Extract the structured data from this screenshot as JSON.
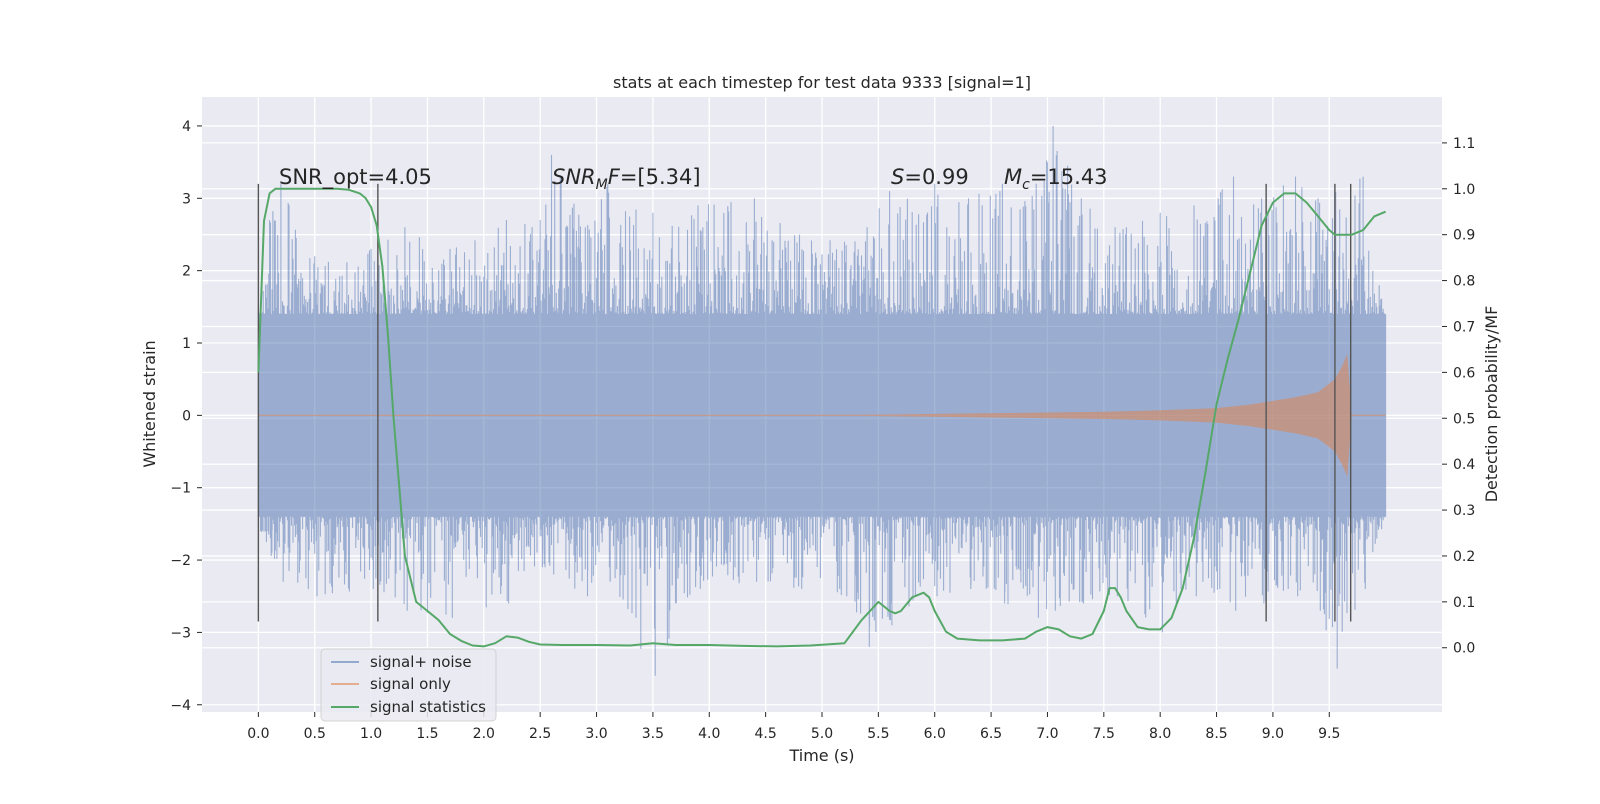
{
  "chart_data": {
    "type": "line",
    "title": "stats at each timestep for test data 9333 [signal=1]",
    "xlabel": "Time (s)",
    "ylabel": "Whitened strain",
    "y2label": "Detection probability/MF",
    "xlim": [
      -0.5,
      10.5
    ],
    "ylim": [
      -4.1,
      4.4
    ],
    "y2lim": [
      -0.14,
      1.2
    ],
    "x_ticks": [
      0.0,
      0.5,
      1.0,
      1.5,
      2.0,
      2.5,
      3.0,
      3.5,
      4.0,
      4.5,
      5.0,
      5.5,
      6.0,
      6.5,
      7.0,
      7.5,
      8.0,
      8.5,
      9.0,
      9.5
    ],
    "x_tick_labels": [
      "0.0",
      "0.5",
      "1.0",
      "1.5",
      "2.0",
      "2.5",
      "3.0",
      "3.5",
      "4.0",
      "4.5",
      "5.0",
      "5.5",
      "6.0",
      "6.5",
      "7.0",
      "7.5",
      "8.0",
      "8.5",
      "9.0",
      "9.5"
    ],
    "y_ticks": [
      4,
      3,
      2,
      1,
      0,
      -1,
      -2,
      -3,
      -4
    ],
    "y_tick_labels": [
      "4",
      "3",
      "2",
      "1",
      "0",
      "−1",
      "−2",
      "−3",
      "−4"
    ],
    "y2_ticks": [
      1.1,
      1.0,
      0.9,
      0.8,
      0.7,
      0.6,
      0.5,
      0.4,
      0.3,
      0.2,
      0.1,
      0.0
    ],
    "y2_tick_labels": [
      "1.1",
      "1.0",
      "0.9",
      "0.8",
      "0.7",
      "0.6",
      "0.5",
      "0.4",
      "0.3",
      "0.2",
      "0.1",
      "0.0"
    ],
    "grid": true,
    "legend": "lower-left",
    "colors": {
      "background": "#eaeaf2",
      "grid": "#ffffff",
      "noise": "#4c72b0",
      "signal": "#dd8452",
      "stats": "#55a868",
      "vlines": "#555555"
    },
    "series": [
      {
        "name": "signal+ noise",
        "axis": "left",
        "style": "dense noise band",
        "core_range": [
          -1.4,
          1.4
        ],
        "envelope_peaks": [
          [
            0.0,
            1.5,
            -1.6
          ],
          [
            0.1,
            2.7,
            -1.9
          ],
          [
            0.2,
            3.2,
            -2.3
          ],
          [
            0.5,
            2.2,
            -2.5
          ],
          [
            1.0,
            2.3,
            -2.4
          ],
          [
            1.3,
            2.6,
            -2.7
          ],
          [
            1.7,
            2.3,
            -2.8
          ],
          [
            2.2,
            2.7,
            -2.6
          ],
          [
            2.5,
            2.7,
            -2.1
          ],
          [
            2.6,
            3.6,
            -2.2
          ],
          [
            2.9,
            2.6,
            -2.5
          ],
          [
            3.1,
            3.2,
            -2.3
          ],
          [
            3.5,
            2.8,
            -3.6
          ],
          [
            3.9,
            2.9,
            -2.4
          ],
          [
            4.4,
            3.0,
            -2.3
          ],
          [
            4.8,
            2.5,
            -2.4
          ],
          [
            5.2,
            2.4,
            -2.5
          ],
          [
            5.4,
            2.6,
            -3.2
          ],
          [
            5.6,
            3.1,
            -2.9
          ],
          [
            6.0,
            3.2,
            -2.5
          ],
          [
            6.3,
            3.0,
            -2.4
          ],
          [
            6.6,
            3.2,
            -2.6
          ],
          [
            6.9,
            3.2,
            -2.8
          ],
          [
            7.05,
            4.0,
            -2.7
          ],
          [
            7.3,
            3.0,
            -2.6
          ],
          [
            7.6,
            2.6,
            -2.5
          ],
          [
            8.0,
            2.8,
            -3.0
          ],
          [
            8.3,
            2.9,
            -2.5
          ],
          [
            8.65,
            3.3,
            -2.7
          ],
          [
            8.9,
            3.0,
            -2.6
          ],
          [
            9.2,
            3.3,
            -2.5
          ],
          [
            9.4,
            3.0,
            -2.7
          ],
          [
            9.55,
            3.2,
            -3.5
          ],
          [
            9.8,
            3.3,
            -2.4
          ],
          [
            10.0,
            1.3,
            -1.4
          ]
        ]
      },
      {
        "name": "signal only",
        "axis": "left",
        "style": "chirp",
        "envelope_x": [
          0.0,
          5.0,
          6.0,
          7.0,
          7.5,
          8.0,
          8.5,
          8.8,
          9.0,
          9.2,
          9.4,
          9.55,
          9.62,
          9.66,
          9.7,
          10.0
        ],
        "envelope_amp": [
          0.0,
          0.0,
          0.02,
          0.04,
          0.05,
          0.07,
          0.1,
          0.15,
          0.2,
          0.25,
          0.32,
          0.5,
          0.7,
          0.85,
          0.0,
          0.0
        ]
      },
      {
        "name": "signal statistics",
        "axis": "right",
        "x": [
          0.0,
          0.05,
          0.1,
          0.15,
          0.2,
          0.3,
          0.5,
          0.7,
          0.8,
          0.9,
          0.95,
          1.0,
          1.05,
          1.1,
          1.15,
          1.2,
          1.25,
          1.3,
          1.4,
          1.5,
          1.6,
          1.7,
          1.8,
          1.9,
          2.0,
          2.1,
          2.2,
          2.3,
          2.4,
          2.5,
          2.7,
          3.0,
          3.3,
          3.5,
          3.7,
          4.0,
          4.3,
          4.6,
          4.9,
          5.2,
          5.35,
          5.5,
          5.6,
          5.65,
          5.7,
          5.8,
          5.9,
          5.95,
          6.0,
          6.1,
          6.2,
          6.4,
          6.6,
          6.8,
          6.9,
          7.0,
          7.1,
          7.2,
          7.3,
          7.4,
          7.5,
          7.55,
          7.6,
          7.65,
          7.7,
          7.8,
          7.9,
          8.0,
          8.1,
          8.2,
          8.3,
          8.4,
          8.5,
          8.6,
          8.7,
          8.8,
          8.9,
          9.0,
          9.1,
          9.2,
          9.3,
          9.4,
          9.5,
          9.55,
          9.6,
          9.7,
          9.8,
          9.9,
          10.0
        ],
        "values": [
          0.6,
          0.93,
          0.99,
          1.0,
          1.0,
          1.0,
          1.0,
          1.0,
          0.998,
          0.99,
          0.98,
          0.96,
          0.92,
          0.83,
          0.68,
          0.5,
          0.35,
          0.2,
          0.1,
          0.08,
          0.06,
          0.03,
          0.015,
          0.005,
          0.003,
          0.01,
          0.025,
          0.022,
          0.013,
          0.007,
          0.006,
          0.006,
          0.005,
          0.01,
          0.006,
          0.006,
          0.004,
          0.003,
          0.005,
          0.01,
          0.06,
          0.1,
          0.08,
          0.075,
          0.08,
          0.11,
          0.12,
          0.11,
          0.08,
          0.035,
          0.02,
          0.016,
          0.016,
          0.02,
          0.035,
          0.045,
          0.04,
          0.025,
          0.02,
          0.03,
          0.08,
          0.13,
          0.13,
          0.11,
          0.08,
          0.045,
          0.04,
          0.04,
          0.065,
          0.13,
          0.24,
          0.38,
          0.53,
          0.63,
          0.72,
          0.82,
          0.92,
          0.97,
          0.99,
          0.99,
          0.97,
          0.94,
          0.91,
          0.9,
          0.9,
          0.9,
          0.91,
          0.94,
          0.95
        ]
      }
    ],
    "vertical_lines": {
      "x": [
        0.0,
        1.06,
        8.94,
        9.55,
        9.69
      ],
      "ymin": -2.85,
      "ymax": 3.2
    },
    "annotations": [
      {
        "x": 0.2,
        "y": 3.2,
        "text": "SNR_opt=4.05"
      },
      {
        "x": 2.6,
        "y": 3.2,
        "text": "SNR_MF=[5.34]"
      },
      {
        "x": 5.6,
        "y": 3.2,
        "text": "S=0.99"
      },
      {
        "x": 6.6,
        "y": 3.2,
        "text": "M_c=15.43"
      }
    ]
  },
  "annotation_parts": {
    "snr_opt": {
      "label": "SNR_opt",
      "value": "=4.05"
    },
    "snr_mf": {
      "base": "SNR",
      "sub": "M",
      "rest": "F",
      "value": "=[5.34]"
    },
    "s": {
      "label": "S",
      "value": "=0.99"
    },
    "mc": {
      "base": "M",
      "sub": "c",
      "value": "=15.43"
    }
  }
}
